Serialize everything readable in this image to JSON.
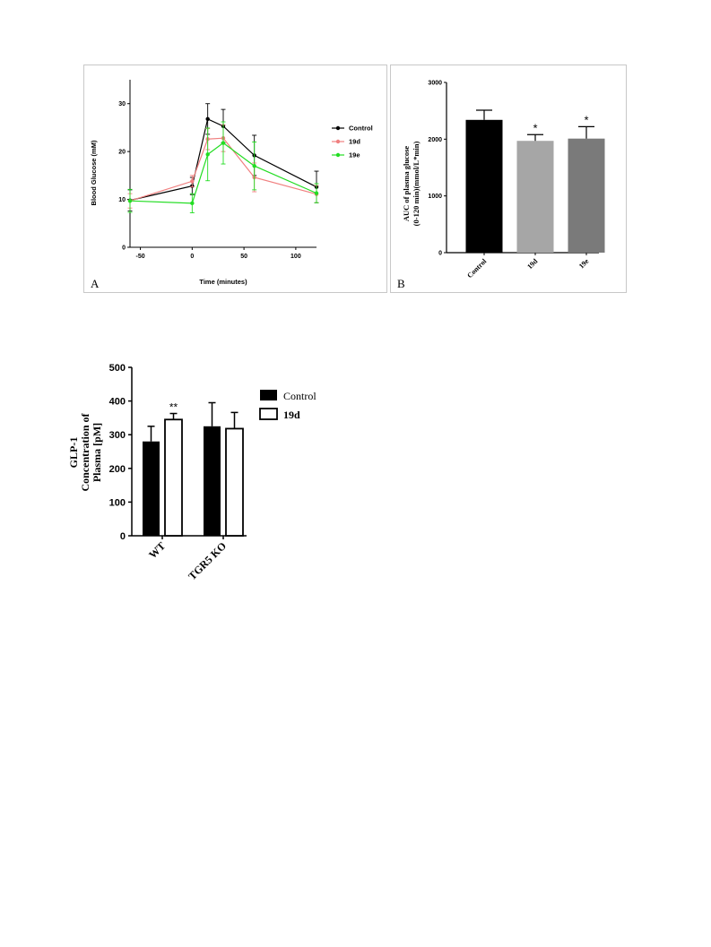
{
  "colors": {
    "control": "#000000",
    "19d": "#f08080",
    "19e": "#22dd22",
    "bar_control": "#000000",
    "bar_19d": "#a6a6a6",
    "bar_19e": "#7a7a7a"
  },
  "chart_data": [
    {
      "panel_label": "A",
      "type": "line",
      "xlabel": "Time (minutes)",
      "ylabel": "Blood Glucose (mM)",
      "xlim": [
        -60,
        120
      ],
      "ylim": [
        0,
        35
      ],
      "xticks": [
        "-50",
        "0",
        "50",
        "100"
      ],
      "yticks": [
        "0",
        "10",
        "20",
        "30"
      ],
      "legend_position": "right",
      "x": [
        -60,
        0,
        15,
        30,
        60,
        120
      ],
      "series": [
        {
          "name": "Control",
          "values": [
            9.8,
            12.8,
            26.8,
            25.3,
            19.2,
            12.6
          ],
          "errors": [
            2.2,
            1.8,
            3.2,
            3.5,
            4.2,
            3.3
          ]
        },
        {
          "name": "19d",
          "values": [
            9.7,
            13.8,
            22.6,
            22.8,
            14.6,
            11.1
          ],
          "errors": [
            1.5,
            1.2,
            2.2,
            2.8,
            3.0,
            1.8
          ]
        },
        {
          "name": "19e",
          "values": [
            9.7,
            9.2,
            19.4,
            21.8,
            17.0,
            11.3
          ],
          "errors": [
            2.4,
            2.0,
            5.5,
            4.4,
            5.0,
            2.0
          ]
        }
      ]
    },
    {
      "panel_label": "B",
      "type": "bar",
      "ylabel_line1": "AUC of plasma glucose",
      "ylabel_line2": "(0-120 min)(mmol/L*min)",
      "categories": [
        "Control",
        "19d",
        "19e"
      ],
      "values": [
        2340,
        1970,
        2010
      ],
      "errors": [
        170,
        110,
        210
      ],
      "significance": [
        "",
        "*",
        "*"
      ],
      "ylim": [
        0,
        3000
      ],
      "yticks": [
        "0",
        "1000",
        "2000",
        "3000"
      ]
    },
    {
      "type": "bar",
      "ylabel_line1": "GLP-1",
      "ylabel_line2": "Concentration of",
      "ylabel_line3": "Plasma [pM]",
      "categories": [
        "WT",
        "TGR5 KO"
      ],
      "series": [
        {
          "name": "Control",
          "values": [
            280,
            325
          ],
          "errors": [
            45,
            70
          ]
        },
        {
          "name": "19d",
          "values": [
            345,
            318
          ],
          "errors": [
            18,
            48
          ]
        }
      ],
      "significance": {
        "WT_19d": "**"
      },
      "ylim": [
        0,
        500
      ],
      "yticks": [
        "0",
        "100",
        "200",
        "300",
        "400",
        "500"
      ],
      "legend_position": "right"
    }
  ]
}
